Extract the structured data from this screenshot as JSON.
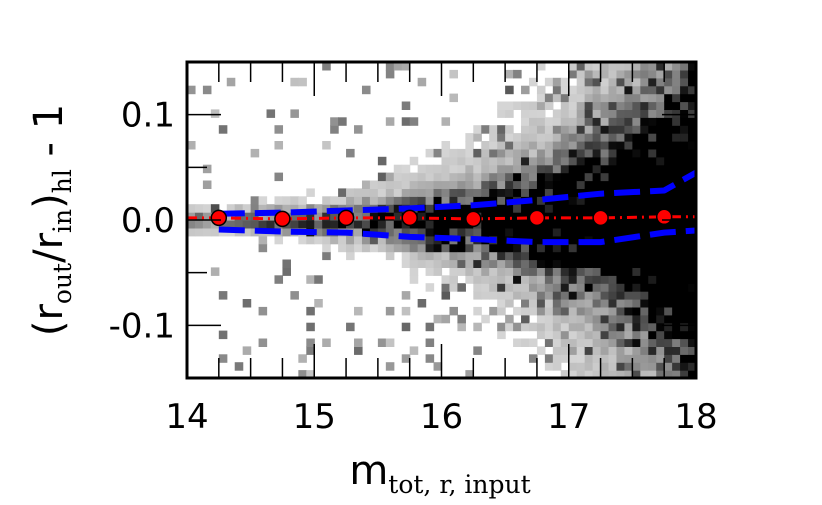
{
  "chart_data": {
    "type": "scatter",
    "title": "",
    "xlabel": {
      "base": "m",
      "subscript": "tot, r, input"
    },
    "ylabel": {
      "open": "(r",
      "sub1": "out",
      "mid": "/r",
      "sub2": "in",
      "close": ")",
      "sub3": "hl",
      "tail": " - 1"
    },
    "xlim": [
      14,
      18
    ],
    "ylim": [
      -0.15,
      0.15
    ],
    "xticks": [
      14,
      15,
      16,
      17,
      18
    ],
    "xtick_labels": [
      "14",
      "15",
      "16",
      "17",
      "18"
    ],
    "yticks": [
      -0.1,
      0.0,
      0.1
    ],
    "ytick_labels": [
      "-0.1",
      "0.0",
      "0.1"
    ],
    "grid": false,
    "background_density": "gray 2D histogram of individual objects, spread grows with magnitude",
    "series": [
      {
        "role": "median",
        "style": "red dash-dot line with red circle markers",
        "color": "#ff0000",
        "x": [
          14.25,
          14.75,
          15.25,
          15.75,
          16.25,
          16.75,
          17.25,
          17.75
        ],
        "y": [
          0.002,
          0.001,
          0.002,
          0.002,
          0.001,
          0.002,
          0.002,
          0.003
        ]
      },
      {
        "role": "upper-envelope",
        "style": "blue dashed",
        "color": "#0000ff",
        "x": [
          14.25,
          14.75,
          15.25,
          15.75,
          16.25,
          16.75,
          17.25,
          17.75,
          18.0
        ],
        "y": [
          0.006,
          0.007,
          0.009,
          0.011,
          0.014,
          0.019,
          0.025,
          0.028,
          0.045
        ]
      },
      {
        "role": "lower-envelope",
        "style": "blue dashed",
        "color": "#0000ff",
        "x": [
          14.25,
          14.75,
          15.25,
          15.75,
          16.25,
          16.75,
          17.25,
          17.75,
          18.0
        ],
        "y": [
          -0.009,
          -0.011,
          -0.012,
          -0.016,
          -0.018,
          -0.021,
          -0.021,
          -0.012,
          -0.01
        ]
      }
    ]
  }
}
